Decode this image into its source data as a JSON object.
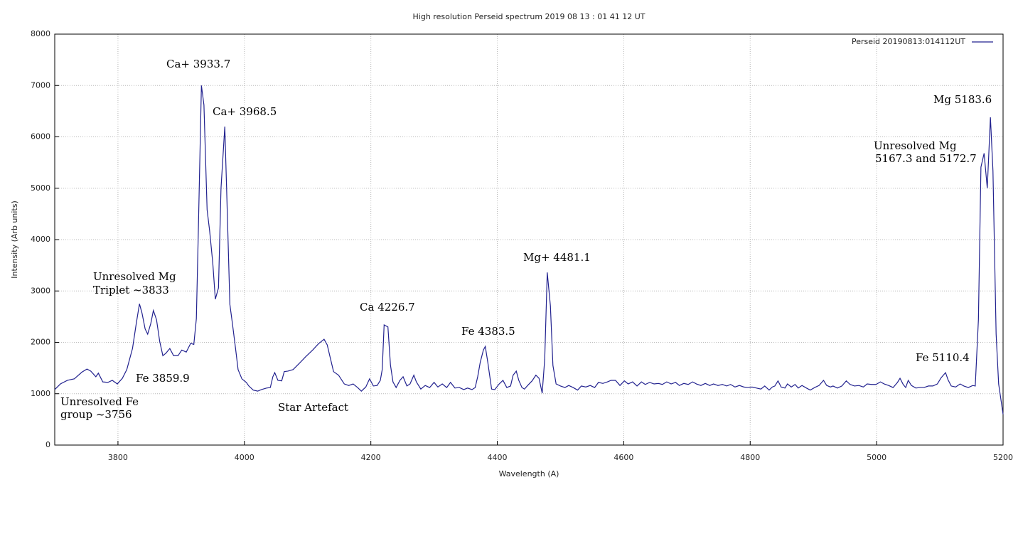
{
  "chart_data": {
    "type": "line",
    "title": "High resolution Perseid spectrum 2019 08 13 : 01 41 12 UT",
    "x_label": "Wavelength (A)",
    "y_label": "Intensity (Arb units)",
    "xlim": [
      3700,
      5200
    ],
    "xticks": [
      3800,
      4000,
      4200,
      4400,
      4600,
      4800,
      5000,
      5200
    ],
    "ylim": [
      0,
      8000
    ],
    "yticks": [
      0,
      1000,
      2000,
      3000,
      4000,
      5000,
      6000,
      7000,
      8000
    ],
    "grid": true,
    "legend": "top-right",
    "annotations": [
      "Ca+ 3933.7",
      "Ca+ 3968.5",
      "Unresolved Mg",
      "Triplet ~3833",
      "Fe 3859.9",
      "Unresolved Fe",
      "group ~3756",
      "Star Artefact",
      "Ca 4226.7",
      "Fe 4383.5",
      "Mg+ 4481.1",
      "Fe 5110.4",
      "Unresolved Mg",
      "5167.3 and 5172.7",
      "Mg 5183.6"
    ],
    "x": [
      3700,
      3709,
      3720,
      3731,
      3743,
      3751,
      3757,
      3765,
      3769,
      3776,
      3784,
      3791,
      3799,
      3807,
      3814,
      3823,
      3829,
      3834,
      3838,
      3843,
      3847,
      3852,
      3856,
      3861,
      3866,
      3871,
      3876,
      3882,
      3888,
      3895,
      3901,
      3908,
      3915,
      3920,
      3924,
      3927,
      3932,
      3936,
      3941,
      3945,
      3950,
      3954,
      3959,
      3963,
      3969,
      3972,
      3977,
      3981,
      3986,
      3990,
      3996,
      4003,
      4007,
      4014,
      4021,
      4027,
      4035,
      4041,
      4045,
      4048,
      4053,
      4059,
      4063,
      4069,
      4077,
      4086,
      4097,
      4108,
      4117,
      4126,
      4131,
      4135,
      4141,
      4149,
      4158,
      4165,
      4172,
      4179,
      4185,
      4192,
      4198,
      4204,
      4210,
      4215,
      4218,
      4221,
      4227,
      4231,
      4235,
      4240,
      4246,
      4251,
      4257,
      4262,
      4268,
      4272,
      4279,
      4286,
      4293,
      4300,
      4306,
      4313,
      4320,
      4326,
      4333,
      4340,
      4347,
      4353,
      4360,
      4365,
      4369,
      4373,
      4378,
      4381,
      4385,
      4391,
      4396,
      4403,
      4409,
      4415,
      4421,
      4425,
      4430,
      4434,
      4439,
      4443,
      4448,
      4455,
      4461,
      4466,
      4471,
      4475,
      4479,
      4484,
      4488,
      4493,
      4500,
      4507,
      4513,
      4520,
      4527,
      4533,
      4540,
      4547,
      4554,
      4560,
      4567,
      4574,
      4580,
      4587,
      4594,
      4601,
      4607,
      4614,
      4621,
      4628,
      4634,
      4641,
      4648,
      4655,
      4661,
      4668,
      4675,
      4682,
      4688,
      4695,
      4702,
      4709,
      4715,
      4722,
      4729,
      4736,
      4742,
      4749,
      4756,
      4763,
      4769,
      4776,
      4783,
      4790,
      4796,
      4803,
      4810,
      4817,
      4823,
      4830,
      4835,
      4839,
      4844,
      4849,
      4855,
      4859,
      4865,
      4871,
      4876,
      4882,
      4889,
      4895,
      4902,
      4909,
      4916,
      4921,
      4927,
      4931,
      4938,
      4945,
      4952,
      4958,
      4965,
      4972,
      4979,
      4985,
      4992,
      4999,
      5006,
      5012,
      5019,
      5026,
      5033,
      5037,
      5042,
      5046,
      5050,
      5055,
      5062,
      5069,
      5075,
      5082,
      5089,
      5096,
      5102,
      5109,
      5113,
      5118,
      5125,
      5132,
      5138,
      5145,
      5152,
      5156,
      5161,
      5165,
      5170,
      5175,
      5180,
      5184,
      5189,
      5193,
      5200
    ],
    "series": [
      {
        "name": "Perseid 20190813:014112UT",
        "color": "#22228f",
        "values": [
          1080,
          1190,
          1260,
          1290,
          1420,
          1480,
          1440,
          1330,
          1400,
          1230,
          1220,
          1260,
          1190,
          1300,
          1470,
          1880,
          2370,
          2750,
          2570,
          2260,
          2160,
          2370,
          2620,
          2440,
          2020,
          1740,
          1790,
          1880,
          1740,
          1740,
          1850,
          1810,
          1980,
          1960,
          2460,
          4100,
          7000,
          6620,
          4580,
          4170,
          3540,
          2840,
          3060,
          5000,
          6200,
          4930,
          2740,
          2370,
          1880,
          1470,
          1290,
          1220,
          1150,
          1070,
          1050,
          1080,
          1110,
          1120,
          1330,
          1410,
          1260,
          1250,
          1430,
          1440,
          1470,
          1580,
          1720,
          1850,
          1970,
          2060,
          1950,
          1740,
          1430,
          1360,
          1190,
          1160,
          1190,
          1120,
          1050,
          1130,
          1290,
          1150,
          1160,
          1260,
          1470,
          2340,
          2300,
          1560,
          1230,
          1120,
          1260,
          1330,
          1150,
          1190,
          1360,
          1230,
          1090,
          1160,
          1120,
          1220,
          1130,
          1190,
          1120,
          1220,
          1110,
          1120,
          1080,
          1110,
          1080,
          1120,
          1330,
          1610,
          1850,
          1920,
          1610,
          1090,
          1080,
          1190,
          1260,
          1120,
          1150,
          1360,
          1440,
          1260,
          1120,
          1090,
          1160,
          1250,
          1360,
          1300,
          1010,
          1670,
          3360,
          2710,
          1550,
          1190,
          1150,
          1120,
          1160,
          1120,
          1070,
          1150,
          1130,
          1160,
          1120,
          1220,
          1200,
          1230,
          1260,
          1260,
          1160,
          1250,
          1190,
          1230,
          1150,
          1230,
          1180,
          1220,
          1190,
          1200,
          1180,
          1230,
          1190,
          1220,
          1160,
          1200,
          1180,
          1230,
          1190,
          1160,
          1200,
          1160,
          1190,
          1160,
          1180,
          1150,
          1180,
          1130,
          1160,
          1130,
          1120,
          1130,
          1110,
          1090,
          1150,
          1070,
          1130,
          1150,
          1250,
          1130,
          1110,
          1190,
          1130,
          1180,
          1110,
          1160,
          1110,
          1070,
          1120,
          1160,
          1260,
          1160,
          1130,
          1150,
          1110,
          1150,
          1250,
          1180,
          1150,
          1160,
          1130,
          1190,
          1180,
          1180,
          1230,
          1190,
          1160,
          1120,
          1220,
          1300,
          1180,
          1120,
          1260,
          1160,
          1110,
          1120,
          1120,
          1150,
          1150,
          1190,
          1310,
          1410,
          1270,
          1150,
          1130,
          1190,
          1150,
          1120,
          1160,
          1150,
          2440,
          5410,
          5680,
          5000,
          6380,
          5340,
          2160,
          1190,
          600
        ]
      }
    ]
  }
}
